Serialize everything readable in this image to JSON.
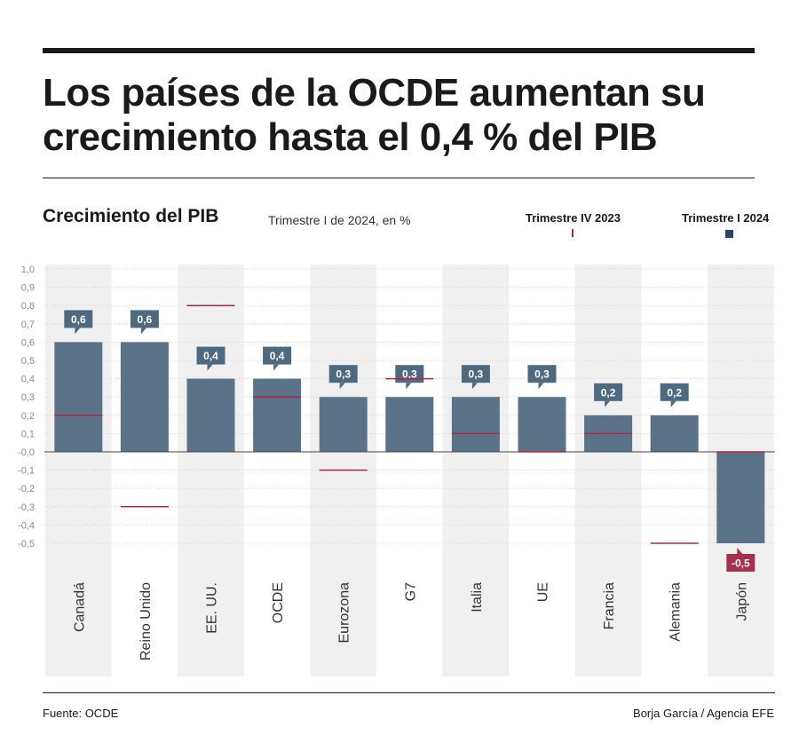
{
  "header": {
    "title": "Los países de la OCDE aumentan su crecimiento hasta el 0,4 % del PIB",
    "subtitle": "Crecimiento del PIB",
    "subtitle_note": "Trimestre I de 2024, en %"
  },
  "legend": {
    "prev_label": "Trimestre IV 2023",
    "curr_label": "Trimestre I 2024"
  },
  "footer": {
    "source": "Fuente: OCDE",
    "credit": "Borja García / Agencia EFE"
  },
  "colors": {
    "bar": "#5a7388",
    "bar_negative": "#5a7388",
    "label_box": "#4d6a80",
    "label_box_negative": "#a8304f",
    "prev_marker": "#b0283c",
    "column_band": "#f0f0f0",
    "legend_curr": "#2a3f73"
  },
  "chart_data": {
    "type": "bar",
    "title": "Crecimiento del PIB",
    "categories": [
      "Canadá",
      "Reino Unido",
      "EE. UU.",
      "OCDE",
      "Eurozona",
      "G7",
      "Italia",
      "UE",
      "Francia",
      "Alemania",
      "Japón"
    ],
    "series": [
      {
        "name": "Trimestre I 2024",
        "values": [
          0.6,
          0.6,
          0.4,
          0.4,
          0.3,
          0.3,
          0.3,
          0.3,
          0.2,
          0.2,
          -0.5
        ]
      },
      {
        "name": "Trimestre IV 2023",
        "values": [
          0.2,
          -0.3,
          0.8,
          0.3,
          -0.1,
          0.4,
          0.1,
          0.0,
          0.1,
          -0.5,
          0.0
        ]
      }
    ],
    "value_labels": [
      "0,6",
      "0,6",
      "0,4",
      "0,4",
      "0,3",
      "0,3",
      "0,3",
      "0,3",
      "0,2",
      "0,2",
      "-0,5"
    ],
    "yticks": [
      1.0,
      0.9,
      0.8,
      0.7,
      0.6,
      0.5,
      0.4,
      0.3,
      0.2,
      0.1,
      0.0,
      -0.1,
      -0.2,
      -0.3,
      -0.4,
      -0.5
    ],
    "ytick_labels": [
      "1,0",
      "0,9",
      "0,8",
      "0,7",
      "0,6",
      "0,5",
      "0,4",
      "0,3",
      "0,2",
      "0,1",
      "-0,0",
      "-0,1",
      "-0,2",
      "-0,3",
      "-0,4",
      "-0,5"
    ],
    "ylim": [
      -0.5,
      1.0
    ],
    "grid": true,
    "legend_position": "top-right"
  }
}
